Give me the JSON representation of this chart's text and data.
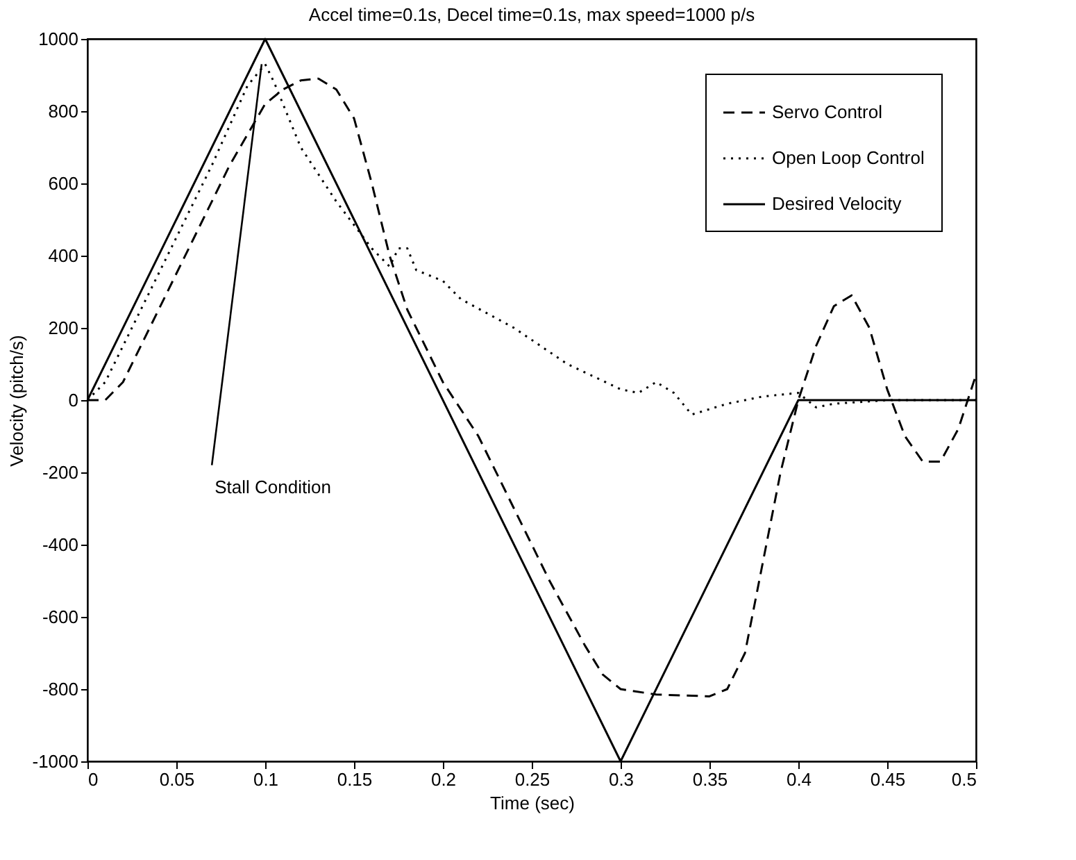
{
  "chart_data": {
    "type": "line",
    "title": "Accel time=0.1s, Decel time=0.1s, max speed=1000 p/s",
    "xlabel": "Time (sec)",
    "ylabel": "Velocity (pitch/s)",
    "xlim": [
      0,
      0.5
    ],
    "xticks": [
      0,
      0.05,
      0.1,
      0.15,
      0.2,
      0.25,
      0.3,
      0.35,
      0.4,
      0.45,
      0.5
    ],
    "ylim": [
      -1000,
      1000
    ],
    "yticks": [
      -1000,
      -800,
      -600,
      -400,
      -200,
      0,
      200,
      400,
      600,
      800,
      1000
    ],
    "grid": false,
    "legend": "top right",
    "marker": "none",
    "annotations": [
      {
        "text": "Stall Condition",
        "x": 0.098,
        "y": 930
      }
    ],
    "series": [
      {
        "name": "Servo Control",
        "color": "#000000",
        "line_style": "dashed",
        "x": [
          0,
          0.01,
          0.02,
          0.04,
          0.06,
          0.08,
          0.1,
          0.11,
          0.12,
          0.13,
          0.14,
          0.15,
          0.16,
          0.17,
          0.18,
          0.2,
          0.22,
          0.24,
          0.26,
          0.28,
          0.29,
          0.3,
          0.32,
          0.35,
          0.36,
          0.37,
          0.38,
          0.39,
          0.4,
          0.41,
          0.42,
          0.43,
          0.44,
          0.45,
          0.46,
          0.47,
          0.48,
          0.49,
          0.5
        ],
        "values": [
          0,
          0,
          50,
          250,
          450,
          650,
          820,
          860,
          885,
          890,
          860,
          780,
          600,
          400,
          250,
          50,
          -100,
          -300,
          -500,
          -680,
          -760,
          -800,
          -815,
          -820,
          -800,
          -700,
          -450,
          -200,
          0,
          150,
          260,
          290,
          200,
          30,
          -100,
          -170,
          -170,
          -80,
          70
        ]
      },
      {
        "name": "Open Loop Control",
        "color": "#000000",
        "line_style": "dotted",
        "x": [
          0,
          0.01,
          0.03,
          0.05,
          0.07,
          0.09,
          0.1,
          0.105,
          0.12,
          0.14,
          0.16,
          0.17,
          0.175,
          0.18,
          0.185,
          0.2,
          0.21,
          0.24,
          0.27,
          0.3,
          0.31,
          0.32,
          0.33,
          0.34,
          0.36,
          0.38,
          0.4,
          0.41,
          0.42,
          0.45,
          0.5
        ],
        "values": [
          0,
          50,
          250,
          450,
          650,
          870,
          930,
          880,
          700,
          550,
          420,
          370,
          420,
          420,
          360,
          330,
          280,
          200,
          100,
          30,
          20,
          50,
          20,
          -40,
          -10,
          10,
          20,
          -20,
          -10,
          0,
          0
        ]
      },
      {
        "name": "Desired Velocity",
        "color": "#000000",
        "line_style": "solid",
        "x": [
          0,
          0.1,
          0.3,
          0.4,
          0.5
        ],
        "values": [
          0,
          1000,
          -1000,
          0,
          0
        ]
      }
    ]
  }
}
